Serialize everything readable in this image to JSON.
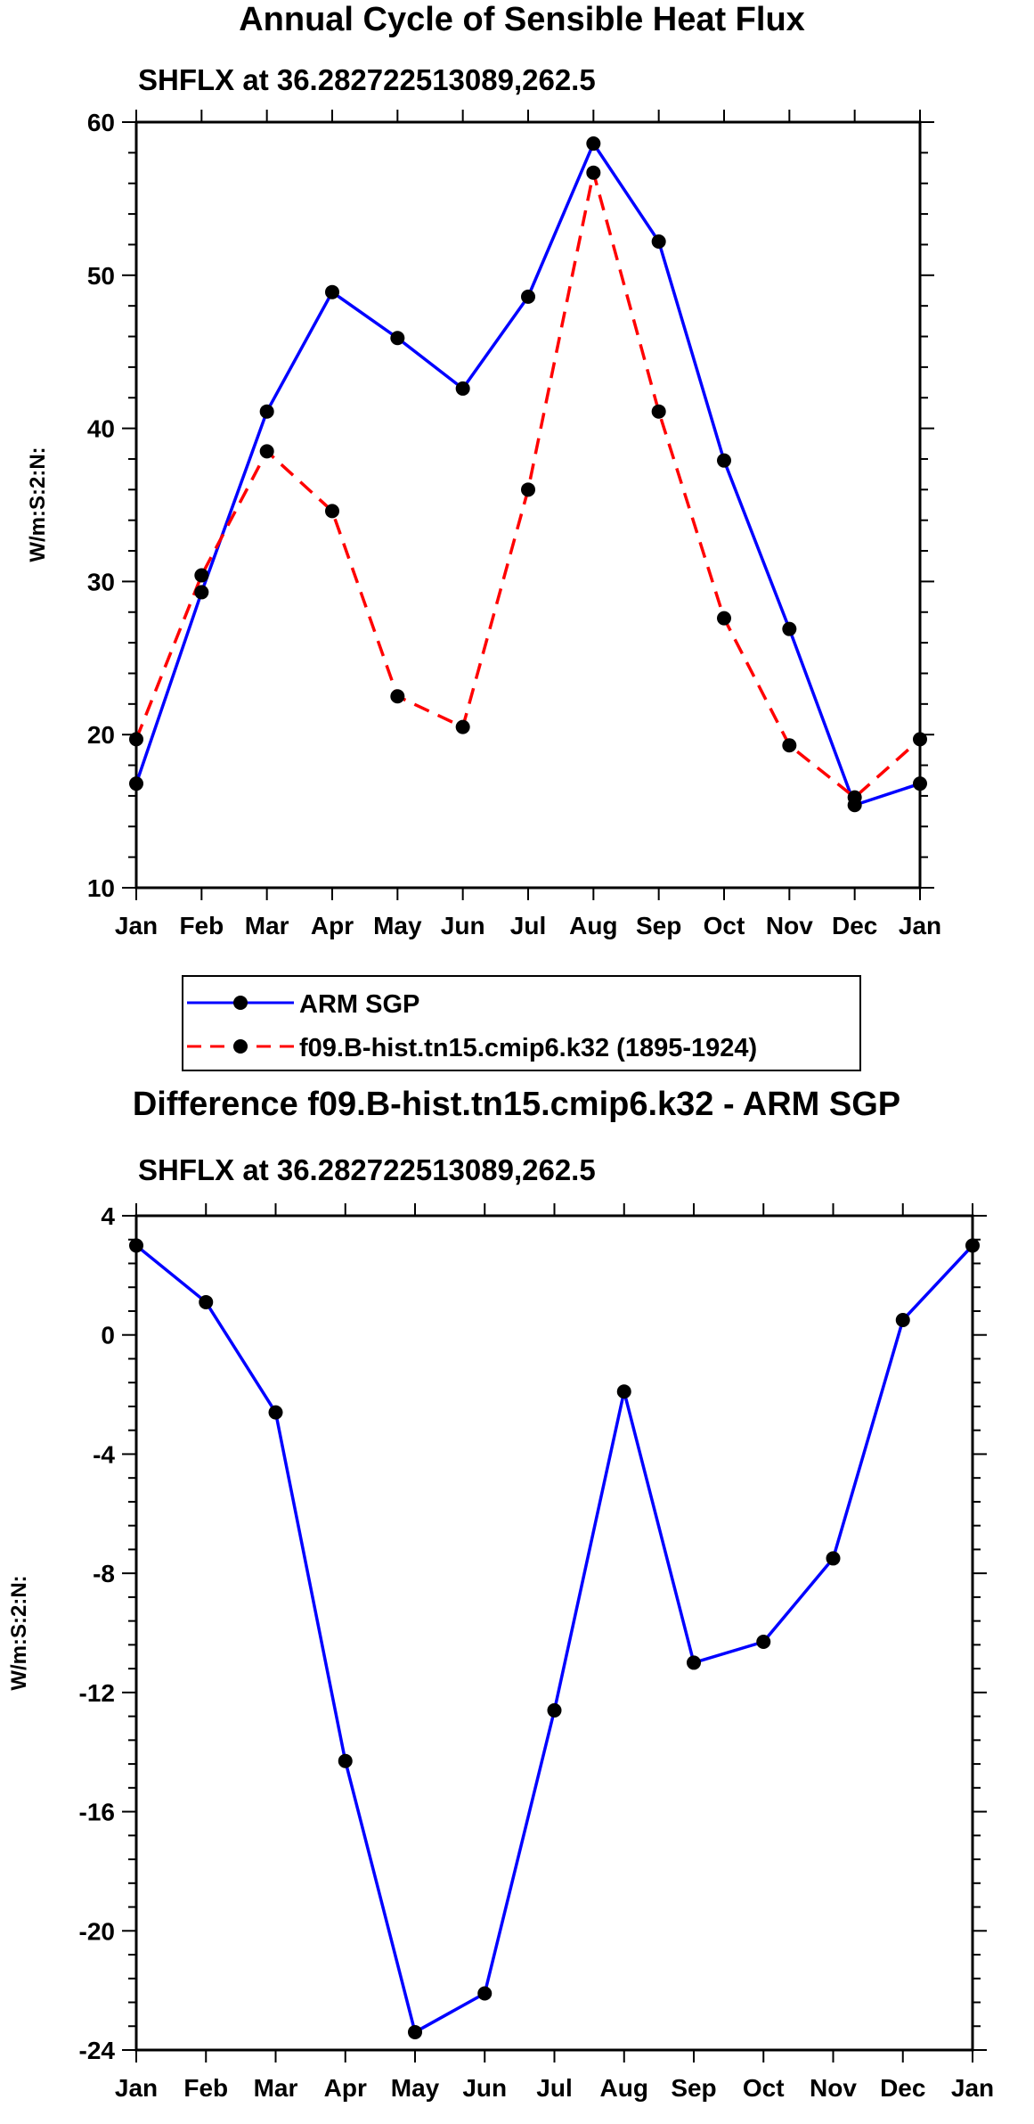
{
  "chart_data": [
    {
      "type": "line",
      "title": "Annual Cycle of Sensible Heat Flux",
      "subtitle": "SHFLX at 36.282722513089,262.5",
      "xlabel": "",
      "ylabel": "W/m:S:2:N:",
      "categories": [
        "Jan",
        "Feb",
        "Mar",
        "Apr",
        "May",
        "Jun",
        "Jul",
        "Aug",
        "Sep",
        "Oct",
        "Nov",
        "Dec",
        "Jan"
      ],
      "ylim": [
        10,
        60
      ],
      "yticks": [
        10,
        20,
        30,
        40,
        50,
        60
      ],
      "ytick_labels": [
        "10",
        "20",
        "30",
        "40",
        "50",
        "60"
      ],
      "series": [
        {
          "name": "ARM SGP",
          "color": "#0000ff",
          "dash": "solid",
          "values": [
            16.8,
            29.3,
            41.1,
            48.9,
            45.9,
            42.6,
            48.6,
            58.6,
            52.2,
            37.9,
            26.9,
            15.4,
            16.8
          ]
        },
        {
          "name": "f09.B-hist.tn15.cmip6.k32 (1895-1924)",
          "color": "#ff0000",
          "dash": "dashed",
          "values": [
            19.7,
            30.4,
            38.5,
            34.6,
            22.5,
            20.5,
            36.0,
            56.7,
            41.1,
            27.6,
            19.3,
            15.9,
            19.7
          ]
        }
      ]
    },
    {
      "type": "line",
      "title": "Difference f09.B-hist.tn15.cmip6.k32 - ARM SGP",
      "subtitle": "SHFLX at 36.282722513089,262.5",
      "xlabel": "",
      "ylabel": "W/m:S:2:N:",
      "categories": [
        "Jan",
        "Feb",
        "Mar",
        "Apr",
        "May",
        "Jun",
        "Jul",
        "Aug",
        "Sep",
        "Oct",
        "Nov",
        "Dec",
        "Jan"
      ],
      "ylim": [
        -24,
        4
      ],
      "yticks": [
        -24,
        -20,
        -16,
        -12,
        -8,
        -4,
        0,
        4
      ],
      "ytick_labels": [
        "-24",
        "-20",
        "-16",
        "-12",
        "-8",
        "-4",
        "0",
        "4"
      ],
      "series": [
        {
          "name": "Difference",
          "color": "#0000ff",
          "dash": "solid",
          "values": [
            3.0,
            1.1,
            -2.6,
            -14.3,
            -23.4,
            -22.1,
            -12.6,
            -1.9,
            -11.0,
            -10.3,
            -7.5,
            0.5,
            3.0
          ]
        }
      ]
    }
  ]
}
